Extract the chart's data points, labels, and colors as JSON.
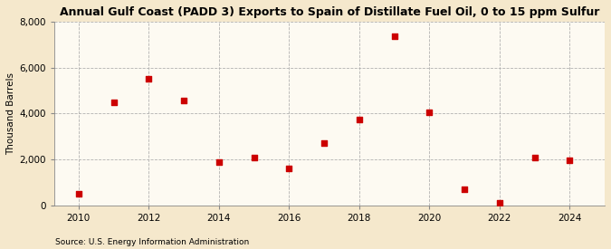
{
  "title": "Annual Gulf Coast (PADD 3) Exports to Spain of Distillate Fuel Oil, 0 to 15 ppm Sulfur",
  "ylabel": "Thousand Barrels",
  "source": "Source: U.S. Energy Information Administration",
  "background_color": "#f5e8cc",
  "plot_bg_color": "#fdfaf2",
  "years": [
    2010,
    2011,
    2012,
    2013,
    2014,
    2015,
    2016,
    2017,
    2018,
    2019,
    2020,
    2021,
    2022,
    2023,
    2024
  ],
  "values": [
    500,
    4500,
    5500,
    4550,
    1900,
    2100,
    1600,
    2700,
    3750,
    7350,
    4050,
    700,
    100,
    2100,
    1980
  ],
  "marker_color": "#cc0000",
  "ylim": [
    0,
    8000
  ],
  "yticks": [
    0,
    2000,
    4000,
    6000,
    8000
  ],
  "xlim": [
    2009.3,
    2025.0
  ],
  "xticks": [
    2010,
    2012,
    2014,
    2016,
    2018,
    2020,
    2022,
    2024
  ]
}
